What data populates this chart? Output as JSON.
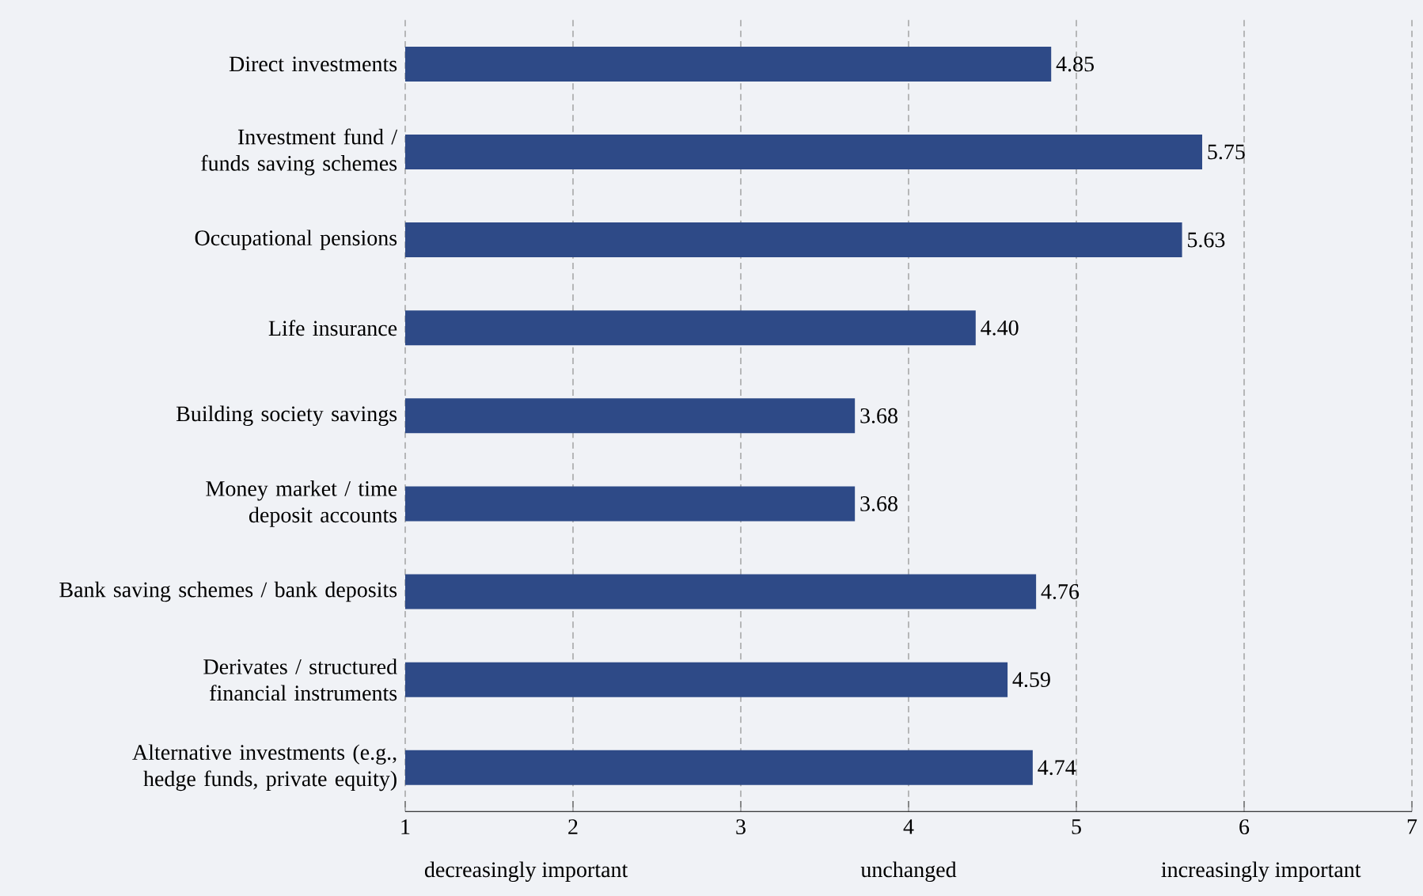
{
  "chart_data": {
    "type": "bar",
    "orientation": "horizontal",
    "categories": [
      "Direct investments",
      "Investment fund / funds saving schemes",
      "Occupational pensions",
      "Life insurance",
      "Building society savings",
      "Money market / time deposit accounts",
      "Bank saving schemes / bank deposits",
      "Derivates / structured financial instruments",
      "Alternative investments (e.g., hedge funds, private equity)"
    ],
    "values": [
      4.85,
      5.75,
      5.63,
      4.4,
      3.68,
      3.68,
      4.76,
      4.59,
      4.74
    ],
    "value_labels": [
      "4.85",
      "5.75",
      "5.63",
      "4.40",
      "3.68",
      "3.68",
      "4.76",
      "4.59",
      "4.74"
    ],
    "color": "#2e4a87",
    "xlim": [
      1,
      7
    ],
    "xticks": [
      1,
      2,
      3,
      4,
      5,
      6,
      7
    ],
    "grid": "x",
    "annotations": [
      "decreasingly important",
      "unchanged",
      "increasingly important"
    ]
  }
}
